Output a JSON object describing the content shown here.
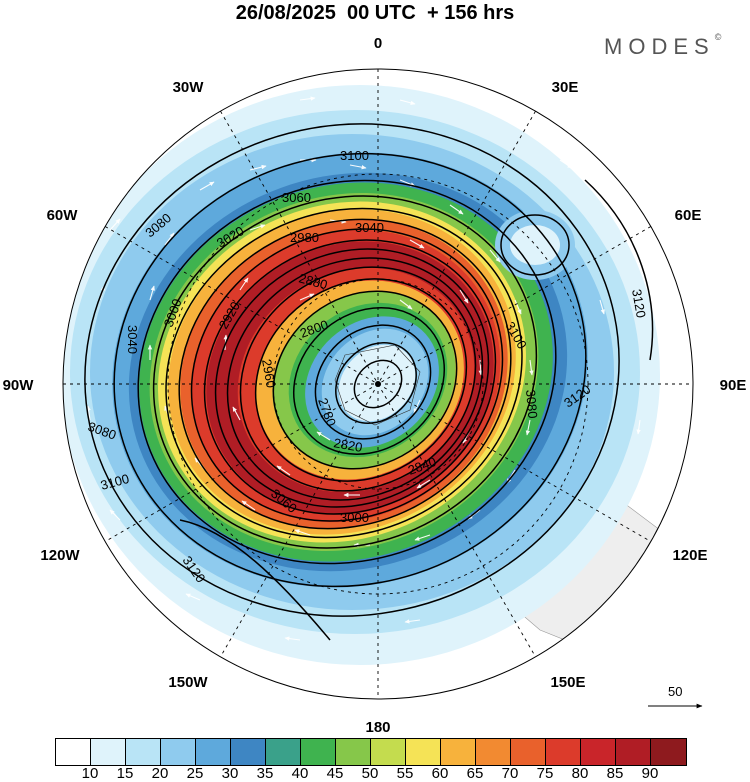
{
  "header": {
    "title": "26/08/2025  00 UTC  + 156 hrs",
    "brand": "MODES",
    "brand_mark": "©"
  },
  "longitude_labels": [
    "0",
    "30E",
    "60E",
    "90E",
    "120E",
    "150E",
    "180",
    "150W",
    "120W",
    "90W",
    "60W",
    "30W"
  ],
  "contour_labels": [
    "3100",
    "3060",
    "3040",
    "3080",
    "3020",
    "3000",
    "2980",
    "2880",
    "2920",
    "2800",
    "2780",
    "2820",
    "2840",
    "2960",
    "3040",
    "3120",
    "3100",
    "3080",
    "3120",
    "3080",
    "3100",
    "3060",
    "3000",
    "3120"
  ],
  "vector_scale": {
    "label": "50"
  },
  "colorbar": {
    "colors": [
      "#ffffff",
      "#dff3fb",
      "#b9e4f6",
      "#8fcbee",
      "#5ea9dc",
      "#3e86c3",
      "#3aa18a",
      "#3fb34f",
      "#86c74a",
      "#c4dc4e",
      "#f5e356",
      "#f7b23c",
      "#f28a31",
      "#e9612c",
      "#dc3b2b",
      "#c9252a",
      "#b01d25",
      "#8e1a1e"
    ],
    "ticks": [
      "10",
      "15",
      "20",
      "25",
      "30",
      "35",
      "40",
      "45",
      "50",
      "55",
      "60",
      "65",
      "70",
      "75",
      "80",
      "85",
      "90"
    ]
  }
}
